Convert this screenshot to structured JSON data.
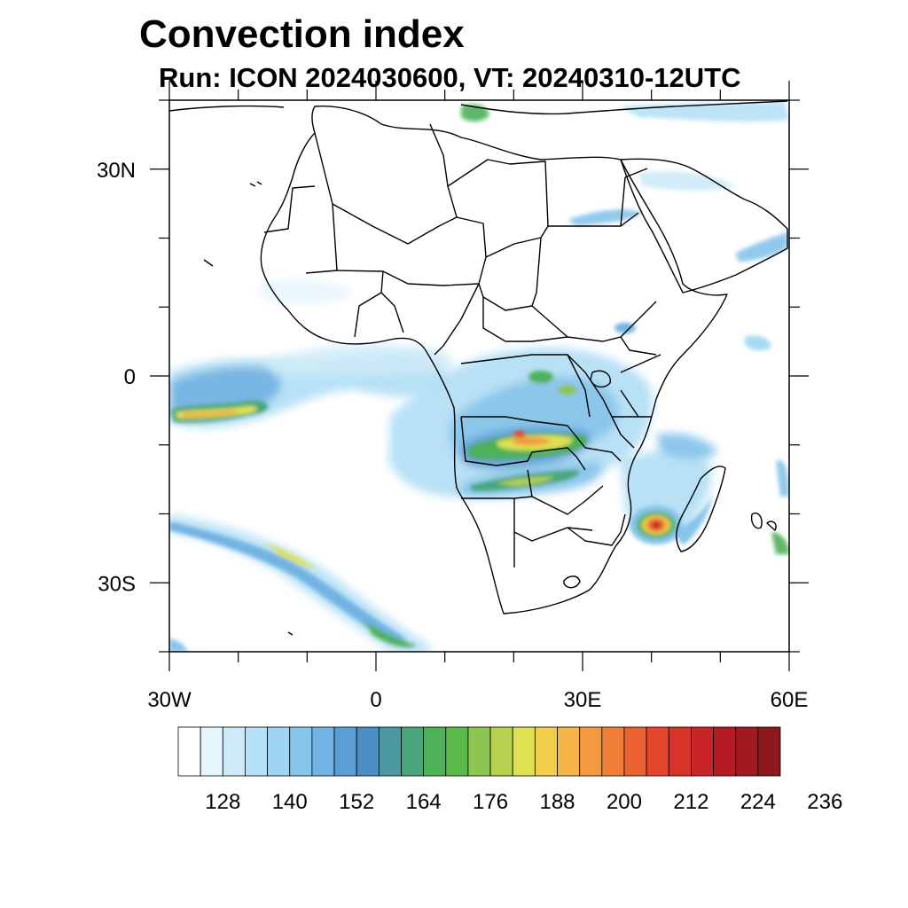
{
  "title": "Convection index",
  "subtitle": "Run: ICON 2024030600,  VT: 20240310-12UTC",
  "map": {
    "region": "Africa",
    "lon_range": [
      -30,
      60
    ],
    "lat_range": [
      -40,
      40
    ],
    "lon_tick_labels": [
      {
        "lon": -30,
        "label": "30W"
      },
      {
        "lon": 0,
        "label": "0"
      },
      {
        "lon": 30,
        "label": "30E"
      },
      {
        "lon": 60,
        "label": "60E"
      }
    ],
    "lat_tick_labels": [
      {
        "lat": 30,
        "label": "30N"
      },
      {
        "lat": 0,
        "label": "0"
      },
      {
        "lat": -30,
        "label": "30S"
      }
    ]
  },
  "colorbar": {
    "colors": [
      "#ffffff",
      "#e6f5fc",
      "#cdeaf8",
      "#b5e0f6",
      "#9dd5f3",
      "#86c4ea",
      "#71b3e2",
      "#5a9ed4",
      "#4c8fc2",
      "#4a98a0",
      "#4aa57a",
      "#4db15a",
      "#5cba4a",
      "#8cc54f",
      "#b6d24f",
      "#dfe150",
      "#f0cf4d",
      "#f5b548",
      "#f39a40",
      "#ef7f38",
      "#ea6231",
      "#e4462b",
      "#d93228",
      "#c92427",
      "#b51b24",
      "#a11921",
      "#8c1a1d"
    ],
    "labels": [
      "128",
      "140",
      "152",
      "164",
      "176",
      "188",
      "200",
      "212",
      "224",
      "236"
    ]
  },
  "convection_areas": [
    {
      "name": "atlantic-itcz-west",
      "lon": -26,
      "lat": -5.5,
      "value": 176
    },
    {
      "name": "atlantic-itcz-core",
      "lon": -22,
      "lat": -5,
      "value": 184
    },
    {
      "name": "angola-zambia-band",
      "lon": 18,
      "lat": -10,
      "value": 200
    },
    {
      "name": "zambia-drc-core",
      "lon": 21,
      "lat": -9,
      "value": 236
    },
    {
      "name": "namibia-botswana-band",
      "lon": 20,
      "lat": -15,
      "value": 176
    },
    {
      "name": "congo-basin",
      "lon": 25,
      "lat": -1,
      "value": 164
    },
    {
      "name": "mozambique-channel-cyclone",
      "lon": 40,
      "lat": -21.5,
      "value": 236
    },
    {
      "name": "south-atlantic-front",
      "lon": -14,
      "lat": -30,
      "value": 176
    },
    {
      "name": "red-sea-band",
      "lon": 33,
      "lat": 23,
      "value": 140
    },
    {
      "name": "mediterranean-band",
      "lon": 14,
      "lat": 38,
      "value": 164
    }
  ]
}
